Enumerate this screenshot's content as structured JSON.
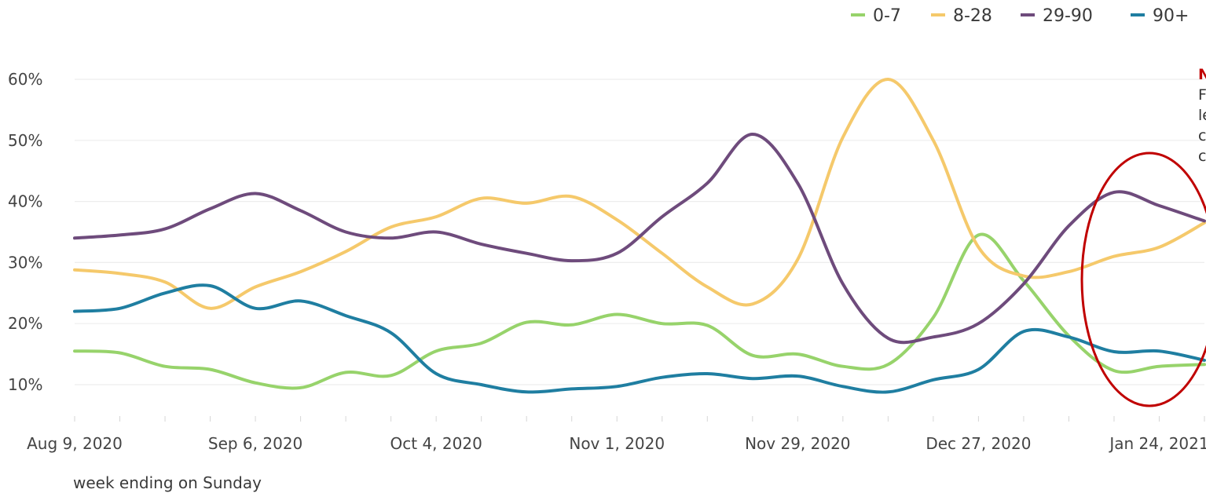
{
  "chart_data": {
    "type": "line",
    "title": "",
    "xlabel": "week ending on Sunday",
    "ylabel": "",
    "x_tick_labels": [
      "Aug 9, 2020",
      "Sep 6, 2020",
      "Oct 4, 2020",
      "Nov 1, 2020",
      "Nov 29, 2020",
      "Dec 27, 2020",
      "Jan 24, 2021"
    ],
    "x": [
      "2020-08-09",
      "2020-08-16",
      "2020-08-23",
      "2020-08-30",
      "2020-09-06",
      "2020-09-13",
      "2020-09-20",
      "2020-09-27",
      "2020-10-04",
      "2020-10-11",
      "2020-10-18",
      "2020-10-25",
      "2020-11-01",
      "2020-11-08",
      "2020-11-15",
      "2020-11-22",
      "2020-11-29",
      "2020-12-06",
      "2020-12-13",
      "2020-12-20",
      "2020-12-27",
      "2021-01-03",
      "2021-01-10",
      "2021-01-17",
      "2021-01-24",
      "2021-01-31"
    ],
    "ylim": [
      5,
      65
    ],
    "y_ticks": [
      10,
      20,
      30,
      40,
      50,
      60
    ],
    "y_tick_labels": [
      "10%",
      "20%",
      "30%",
      "40%",
      "50%",
      "60%"
    ],
    "grid": true,
    "legend_position": "top-right",
    "series": [
      {
        "name": "0-7",
        "color": "#97d36b",
        "values": [
          15.5,
          15.2,
          13.0,
          12.5,
          10.3,
          9.5,
          12.0,
          11.5,
          15.5,
          16.8,
          20.2,
          19.8,
          21.5,
          20.0,
          19.7,
          14.8,
          15.0,
          13.0,
          13.3,
          21.0,
          34.5,
          27.0,
          18.0,
          12.3,
          13.0,
          13.3
        ]
      },
      {
        "name": "8-28",
        "color": "#f5c96b",
        "values": [
          28.8,
          28.2,
          26.8,
          22.5,
          26.0,
          28.5,
          31.8,
          35.8,
          37.5,
          40.5,
          39.7,
          40.8,
          37.0,
          31.5,
          26.0,
          23.2,
          30.5,
          50.5,
          60.0,
          50.0,
          32.5,
          27.8,
          28.5,
          31.0,
          32.5,
          36.5
        ]
      },
      {
        "name": "29-90",
        "color": "#6e4b7c",
        "values": [
          34.0,
          34.5,
          35.5,
          38.8,
          41.3,
          38.5,
          35.0,
          34.0,
          35.0,
          33.0,
          31.5,
          30.3,
          31.5,
          37.5,
          43.0,
          51.0,
          43.0,
          26.5,
          17.6,
          17.8,
          20.0,
          26.5,
          36.0,
          41.5,
          39.3,
          36.8
        ]
      },
      {
        "name": "90+",
        "color": "#1f7ea1",
        "values": [
          22.0,
          22.5,
          25.0,
          26.2,
          22.5,
          23.7,
          21.3,
          18.5,
          11.8,
          10.0,
          8.8,
          9.3,
          9.7,
          11.2,
          11.8,
          11.0,
          11.4,
          9.7,
          8.8,
          10.8,
          12.5,
          18.7,
          17.8,
          15.4,
          15.5,
          14.0
        ]
      }
    ]
  },
  "annotation": {
    "title": "N",
    "lines": [
      "F",
      "le",
      "c",
      "c"
    ],
    "circle_color": "#c00000"
  }
}
